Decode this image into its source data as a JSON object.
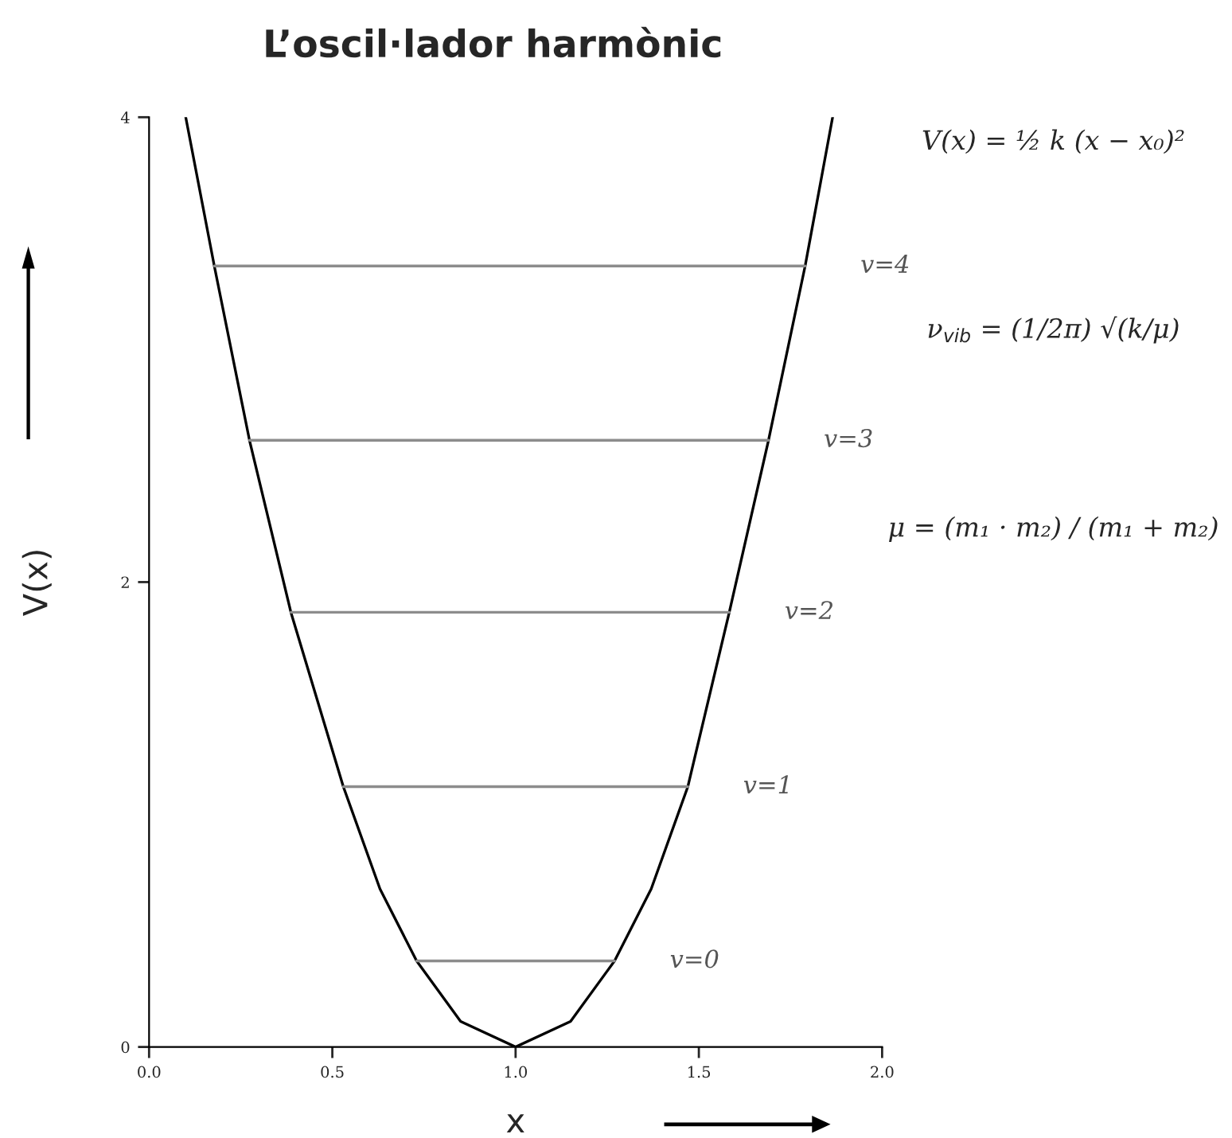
{
  "chart_data": {
    "type": "line",
    "title": "L’oscil·lador harmònic",
    "xlabel": "x",
    "ylabel": "V(x)",
    "xlim": [
      0,
      2
    ],
    "ylim": [
      0,
      4
    ],
    "xticks": [
      {
        "value": 0,
        "label": "0.0"
      },
      {
        "value": 0.5,
        "label": "0.5"
      },
      {
        "value": 1,
        "label": "1.0"
      },
      {
        "value": 1.5,
        "label": "1.5"
      },
      {
        "value": 2,
        "label": "2.0"
      }
    ],
    "yticks": [
      0,
      2,
      4
    ],
    "grid": false,
    "legend": false,
    "marker": "none",
    "line_style": "solid",
    "series": [
      {
        "color": "#000000",
        "x": [
          0.1,
          0.178,
          0.274,
          0.387,
          0.53,
          0.63,
          0.73,
          0.85,
          1.0,
          1.15,
          1.27,
          1.37,
          1.47,
          1.583,
          1.69,
          1.79,
          1.865
        ],
        "values": [
          4.0,
          3.36,
          2.61,
          1.87,
          1.12,
          0.68,
          0.37,
          0.11,
          0.0,
          0.11,
          0.37,
          0.68,
          1.12,
          1.87,
          2.61,
          3.36,
          4.0
        ]
      },
      {
        "name": "v=0",
        "color": "#8c8c8c",
        "x": [
          0.73,
          1.27
        ],
        "values": [
          0.37,
          0.37
        ]
      },
      {
        "name": "v=1",
        "color": "#8c8c8c",
        "x": [
          0.53,
          1.47
        ],
        "values": [
          1.12,
          1.12
        ]
      },
      {
        "name": "v=2",
        "color": "#8c8c8c",
        "x": [
          0.387,
          1.583
        ],
        "values": [
          1.87,
          1.87
        ]
      },
      {
        "name": "v=3",
        "color": "#8c8c8c",
        "x": [
          0.274,
          1.69
        ],
        "values": [
          2.61,
          2.61
        ]
      },
      {
        "name": "v=4",
        "color": "#8c8c8c",
        "x": [
          0.178,
          1.79
        ],
        "values": [
          3.36,
          3.36
        ]
      }
    ],
    "annotations": [
      "V(x) = ½ k (x − x₀)²",
      "ν$_{vib}$ = (1/2π) √(k/μ)",
      "μ = (m₁ · m₂) / (m₁ + m₂)"
    ]
  }
}
